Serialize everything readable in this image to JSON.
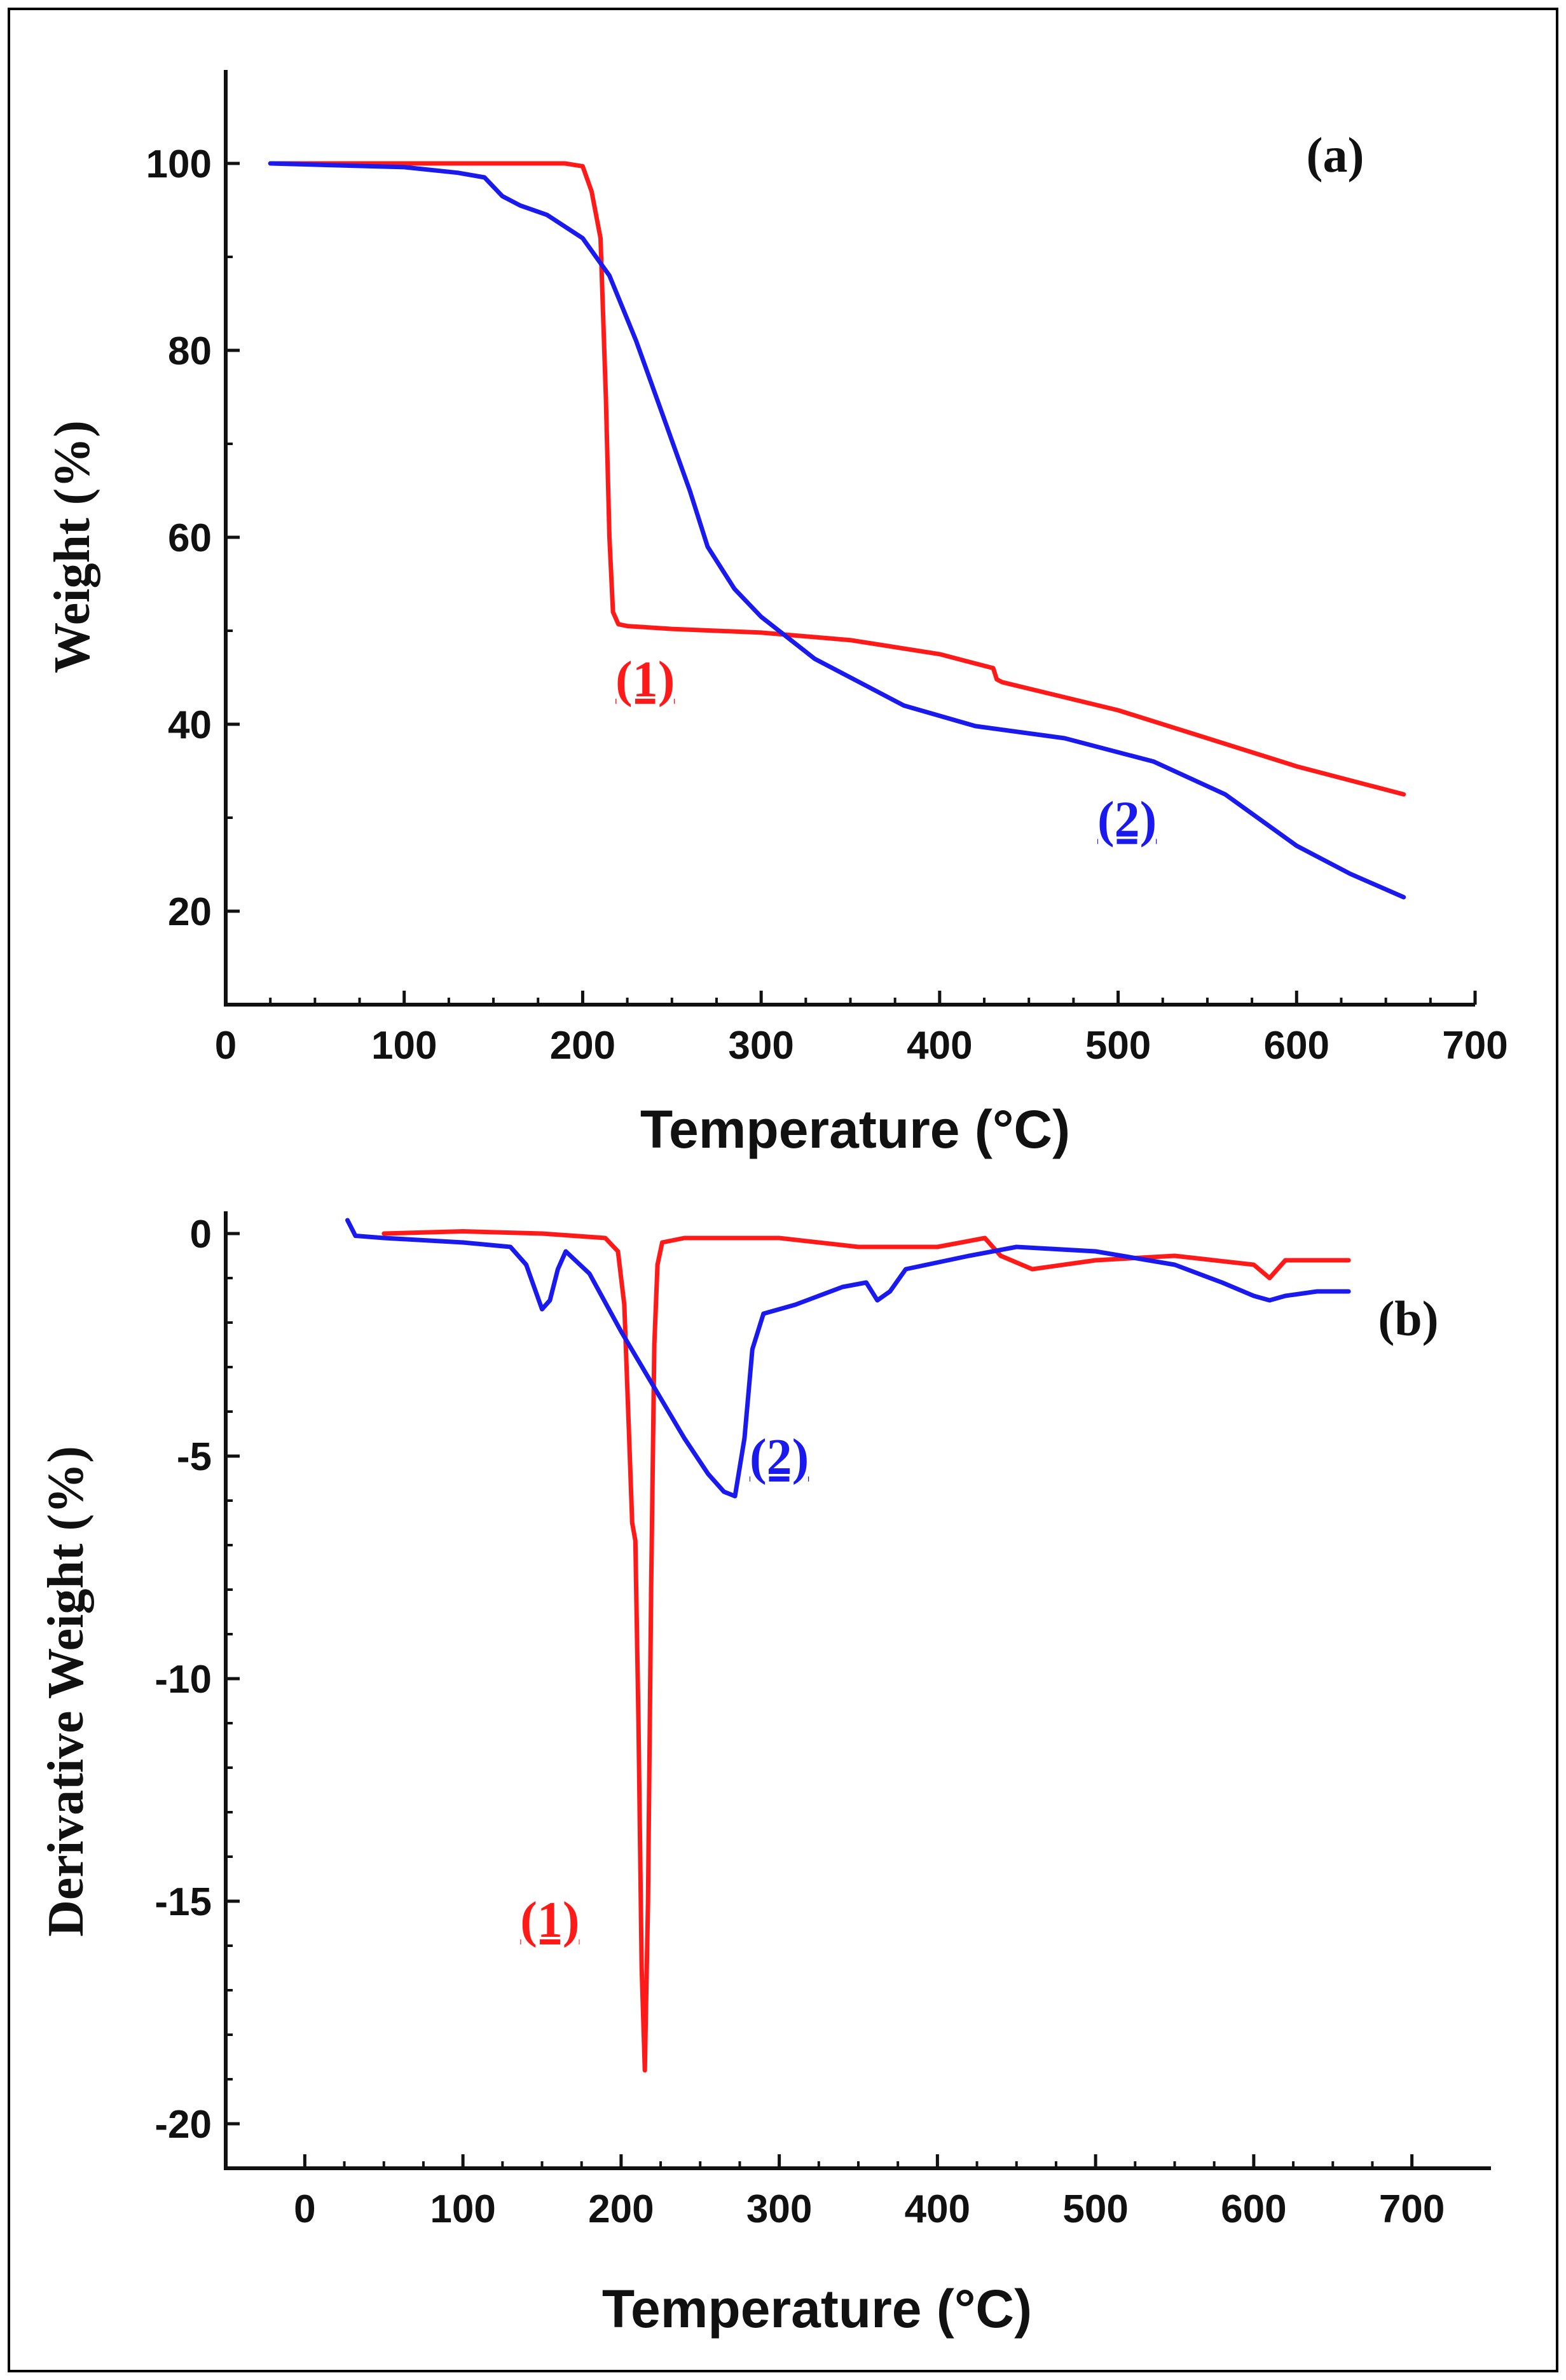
{
  "colors": {
    "series_1": "#ff1a1a",
    "series_2": "#1a1aee",
    "axis": "#111111"
  },
  "chart_data": [
    {
      "type": "line",
      "panel": "(a)",
      "xlabel": "Temperature (°C)",
      "ylabel": "Weight (%)",
      "xlim": [
        0,
        700
      ],
      "ylim": [
        10,
        110
      ],
      "xticks": [
        0,
        100,
        200,
        300,
        400,
        500,
        600,
        700
      ],
      "yticks": [
        20,
        40,
        60,
        80,
        100
      ],
      "series": [
        {
          "name": "(1)",
          "color": "#ff1a1a",
          "label": "(1)",
          "label_at": [
            235,
            43
          ],
          "x": [
            25,
            100,
            150,
            190,
            200,
            205,
            210,
            213,
            215,
            217,
            220,
            225,
            250,
            300,
            350,
            400,
            430,
            432,
            435,
            500,
            550,
            600,
            660
          ],
          "y": [
            100,
            100,
            100,
            100,
            99.7,
            97,
            92,
            75,
            60,
            52,
            50.7,
            50.5,
            50.2,
            49.8,
            49,
            47.5,
            46,
            44.8,
            44.5,
            41.5,
            38.5,
            35.5,
            32.5
          ]
        },
        {
          "name": "(2)",
          "color": "#1a1aee",
          "label": "(2)",
          "label_at": [
            505,
            28
          ],
          "x": [
            25,
            100,
            130,
            145,
            155,
            165,
            180,
            200,
            215,
            230,
            245,
            260,
            270,
            285,
            300,
            330,
            360,
            380,
            420,
            470,
            520,
            560,
            600,
            630,
            660
          ],
          "y": [
            100,
            99.6,
            99,
            98.5,
            96.5,
            95.5,
            94.5,
            92,
            88,
            81,
            73,
            65,
            59,
            54.5,
            51.5,
            47,
            44,
            42,
            39.8,
            38.5,
            36,
            32.5,
            27,
            24,
            21.5
          ]
        }
      ]
    },
    {
      "type": "line",
      "panel": "(b)",
      "xlabel": "Temperature (°C)",
      "ylabel": "Derivative Weight (%)",
      "xlim": [
        -50,
        750
      ],
      "ylim": [
        -21,
        0.5
      ],
      "xticks": [
        0,
        100,
        200,
        300,
        400,
        500,
        600,
        700
      ],
      "yticks": [
        0,
        -5,
        -10,
        -15,
        -20
      ],
      "series": [
        {
          "name": "(1)",
          "color": "#ff1a1a",
          "label": "(1)",
          "label_at": [
            155,
            -15.8
          ],
          "x": [
            50,
            100,
            150,
            190,
            198,
            202,
            205,
            207,
            209,
            211,
            213,
            215,
            217,
            219,
            221,
            223,
            226,
            240,
            300,
            350,
            400,
            430,
            440,
            460,
            500,
            550,
            600,
            610,
            620,
            660
          ],
          "y": [
            0,
            0.05,
            0,
            -0.1,
            -0.4,
            -1.6,
            -4.5,
            -6.5,
            -6.9,
            -11,
            -16.5,
            -18.8,
            -15,
            -8,
            -2.5,
            -0.7,
            -0.2,
            -0.1,
            -0.1,
            -0.3,
            -0.3,
            -0.1,
            -0.5,
            -0.8,
            -0.6,
            -0.5,
            -0.7,
            -1,
            -0.6,
            -0.6
          ]
        },
        {
          "name": "(2)",
          "color": "#1a1aee",
          "label": "(2)",
          "label_at": [
            300,
            -5.4
          ],
          "x": [
            27,
            32,
            50,
            100,
            130,
            140,
            150,
            155,
            160,
            165,
            180,
            200,
            220,
            240,
            255,
            265,
            272,
            278,
            283,
            290,
            310,
            340,
            355,
            362,
            370,
            380,
            420,
            450,
            500,
            550,
            580,
            600,
            610,
            620,
            640,
            660
          ],
          "y": [
            0.3,
            -0.05,
            -0.1,
            -0.2,
            -0.3,
            -0.7,
            -1.7,
            -1.5,
            -0.8,
            -0.4,
            -0.9,
            -2.2,
            -3.4,
            -4.6,
            -5.4,
            -5.8,
            -5.9,
            -4.6,
            -2.6,
            -1.8,
            -1.6,
            -1.2,
            -1.1,
            -1.5,
            -1.3,
            -0.8,
            -0.5,
            -0.3,
            -0.4,
            -0.7,
            -1.1,
            -1.4,
            -1.5,
            -1.4,
            -1.3,
            -1.3
          ]
        }
      ]
    }
  ]
}
